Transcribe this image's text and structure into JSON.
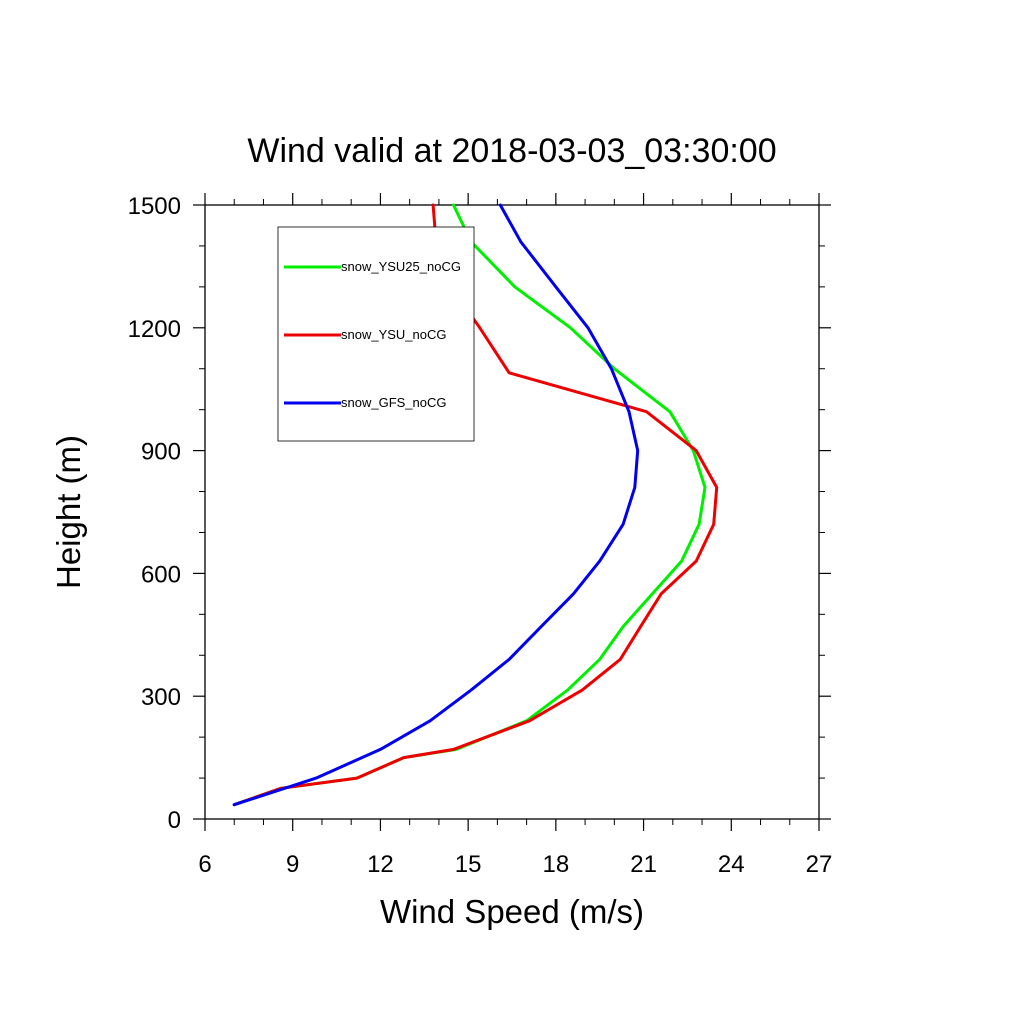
{
  "chart_data": {
    "type": "line",
    "title": "Wind valid at 2018-03-03_03:30:00",
    "xlabel": "Wind Speed (m/s)",
    "ylabel": "Height (m)",
    "xlim": [
      6,
      27
    ],
    "ylim": [
      0,
      1500
    ],
    "xticks": [
      6,
      9,
      12,
      15,
      18,
      21,
      24,
      27
    ],
    "yticks": [
      0,
      300,
      600,
      900,
      1200,
      1500
    ],
    "grid": false,
    "legend_position": "top-left, inside plot",
    "series": [
      {
        "name": "snow_YSU25_noCG",
        "color": "#00ee00",
        "points": [
          [
            7.0,
            35
          ],
          [
            8.6,
            75
          ],
          [
            11.2,
            100
          ],
          [
            12.8,
            150
          ],
          [
            14.6,
            170
          ],
          [
            17.0,
            240
          ],
          [
            18.4,
            315
          ],
          [
            19.5,
            390
          ],
          [
            20.3,
            470
          ],
          [
            21.3,
            550
          ],
          [
            22.3,
            630
          ],
          [
            22.9,
            720
          ],
          [
            23.1,
            810
          ],
          [
            22.7,
            900
          ],
          [
            21.9,
            995
          ],
          [
            20.0,
            1100
          ],
          [
            18.5,
            1200
          ],
          [
            16.6,
            1300
          ],
          [
            15.1,
            1410
          ],
          [
            14.5,
            1500
          ]
        ]
      },
      {
        "name": "snow_YSU_noCG",
        "color": "#ee0000",
        "points": [
          [
            7.0,
            35
          ],
          [
            8.6,
            75
          ],
          [
            11.2,
            100
          ],
          [
            12.8,
            150
          ],
          [
            14.5,
            170
          ],
          [
            17.1,
            240
          ],
          [
            18.9,
            315
          ],
          [
            20.2,
            390
          ],
          [
            20.9,
            470
          ],
          [
            21.6,
            550
          ],
          [
            22.8,
            630
          ],
          [
            23.4,
            720
          ],
          [
            23.5,
            810
          ],
          [
            22.8,
            900
          ],
          [
            21.1,
            995
          ],
          [
            16.4,
            1090
          ],
          [
            15.4,
            1200
          ],
          [
            14.4,
            1300
          ],
          [
            13.9,
            1410
          ],
          [
            13.8,
            1500
          ]
        ]
      },
      {
        "name": "snow_GFS_noCG",
        "color": "#0000ee",
        "points": [
          [
            7.0,
            35
          ],
          [
            9.8,
            100
          ],
          [
            12.0,
            170
          ],
          [
            13.7,
            240
          ],
          [
            15.1,
            315
          ],
          [
            16.4,
            390
          ],
          [
            17.5,
            470
          ],
          [
            18.6,
            550
          ],
          [
            19.5,
            630
          ],
          [
            20.3,
            720
          ],
          [
            20.7,
            810
          ],
          [
            20.8,
            900
          ],
          [
            20.5,
            995
          ],
          [
            19.9,
            1100
          ],
          [
            19.1,
            1200
          ],
          [
            18.0,
            1300
          ],
          [
            16.8,
            1410
          ],
          [
            16.1,
            1500
          ]
        ]
      }
    ]
  }
}
